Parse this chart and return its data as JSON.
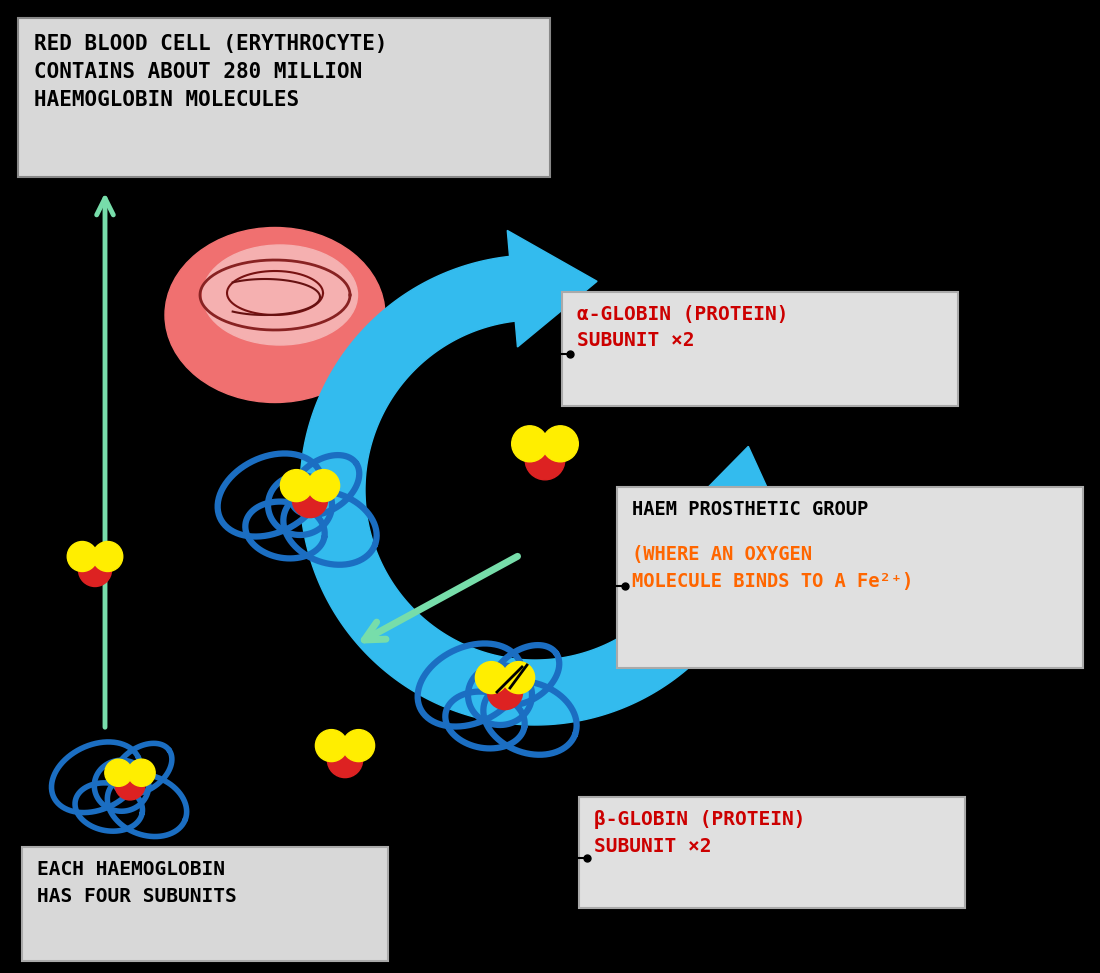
{
  "bg_color": "#000000",
  "box_bg": "#e0e0e0",
  "text_black": "#000000",
  "text_red": "#cc0000",
  "text_orange": "#ff6600",
  "rbc_outer": "#f07070",
  "rbc_mid": "#f5a0a0",
  "rbc_inner_line": "#993333",
  "blue_subunit": "#1b6ec2",
  "cyan_arrow": "#33bbee",
  "green_arrow": "#77ddaa",
  "yellow_ball": "#ffee00",
  "red_ball": "#dd2222",
  "title_line1": "RED BLOOD CELL (ERYTHROCYTE)",
  "title_line2": "CONTAINS ABOUT 280 MILLION",
  "title_line3": "HAEMOGLOBIN MOLECULES",
  "label_alpha_line1": "α-GLOBIN (PROTEIN)",
  "label_alpha_line2": "SUBUNIT ×2",
  "label_haem_line1": "HAEM PROSTHETIC GROUP",
  "label_haem_line2": "(WHERE AN OXYGEN",
  "label_haem_line3": "MOLECULE BINDS TO A Fe²⁺)",
  "label_beta_line1": "β-GLOBIN (PROTEIN)",
  "label_beta_line2": "SUBUNIT ×2",
  "label_each_line1": "EACH HAEMOGLOBIN",
  "label_each_line2": "HAS FOUR SUBUNITS"
}
